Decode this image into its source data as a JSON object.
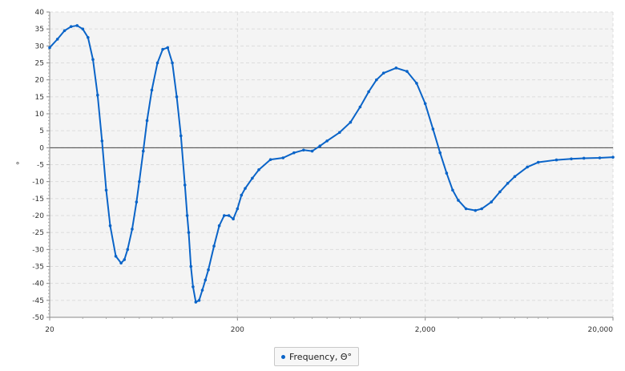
{
  "colors": {
    "series": "#0a64c8",
    "plot_bg": "#f4f4f4",
    "grid": "#dcdcdc",
    "zero_line": "#444444"
  },
  "chart_data": {
    "type": "line",
    "title": "",
    "xlabel": "",
    "ylabel": "°",
    "x_scale": "log",
    "xlim": [
      20,
      20000
    ],
    "ylim": [
      -50,
      40
    ],
    "x_ticks": [
      20,
      200,
      2000,
      20000
    ],
    "x_tick_labels": [
      "20",
      "200",
      "2,000",
      "20,000"
    ],
    "y_ticks": [
      -50,
      -45,
      -40,
      -35,
      -30,
      -25,
      -20,
      -15,
      -10,
      -5,
      0,
      5,
      10,
      15,
      20,
      25,
      30,
      35,
      40
    ],
    "grid": true,
    "legend_position": "bottom-center",
    "series": [
      {
        "name": "Frequency, Θ°",
        "x": [
          20,
          22,
          24,
          26,
          28,
          30,
          32,
          34,
          36,
          38,
          40,
          42,
          45,
          48,
          50,
          52,
          55,
          58,
          60,
          63,
          66,
          70,
          75,
          80,
          85,
          90,
          95,
          100,
          105,
          108,
          110,
          113,
          116,
          120,
          125,
          130,
          135,
          140,
          150,
          160,
          170,
          180,
          190,
          200,
          210,
          220,
          240,
          260,
          300,
          350,
          400,
          450,
          500,
          550,
          600,
          700,
          800,
          900,
          1000,
          1100,
          1200,
          1400,
          1600,
          1800,
          2000,
          2200,
          2400,
          2600,
          2800,
          3000,
          3300,
          3700,
          4000,
          4500,
          5000,
          5500,
          6000,
          7000,
          8000,
          10000,
          12000,
          14000,
          17000,
          20000
        ],
        "values": [
          29.5,
          32,
          34.5,
          35.7,
          36,
          35,
          32.5,
          26,
          15.5,
          2,
          -12.5,
          -23,
          -32,
          -34,
          -33,
          -30,
          -24,
          -16,
          -10,
          -1,
          8,
          17,
          25,
          29,
          29.5,
          25,
          15,
          3.5,
          -11,
          -20,
          -25,
          -35,
          -41,
          -45.5,
          -45,
          -42,
          -39,
          -36,
          -29,
          -23,
          -20,
          -20,
          -21,
          -18,
          -14,
          -12,
          -9,
          -6.5,
          -3.5,
          -3,
          -1.5,
          -0.7,
          -1,
          0.5,
          2,
          4.5,
          7.5,
          12,
          16.5,
          20,
          22,
          23.5,
          22.5,
          19,
          13,
          5.5,
          -1.5,
          -7.5,
          -12.5,
          -15.5,
          -18,
          -18.5,
          -18,
          -16,
          -13,
          -10.5,
          -8.5,
          -5.7,
          -4.3,
          -3.6,
          -3.3,
          -3.1,
          -3,
          -2.8
        ]
      }
    ]
  }
}
